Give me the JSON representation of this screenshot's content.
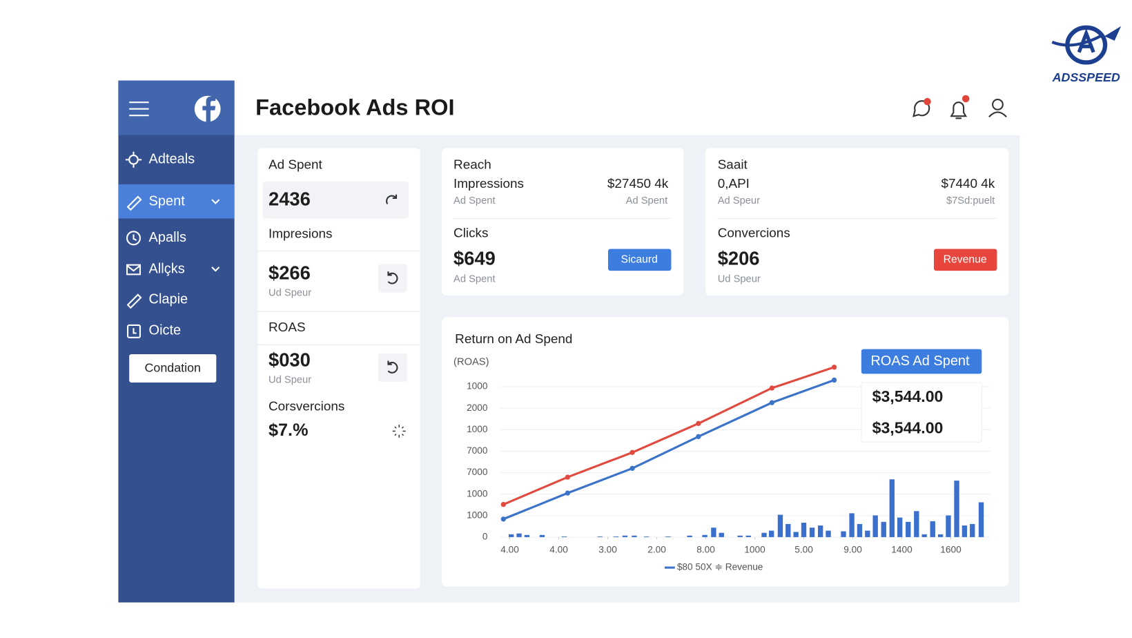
{
  "logo": {
    "text": "ADSSPEED"
  },
  "sidebar": {
    "items": [
      {
        "label": "Adteals"
      },
      {
        "label": "Spent"
      },
      {
        "label": "Apalls"
      },
      {
        "label": "Allçks"
      },
      {
        "label": "Clapie"
      },
      {
        "label": "Oicte"
      }
    ],
    "button": "Condation"
  },
  "header": {
    "title": "Facebook Ads ROI"
  },
  "left_card": {
    "ad_spent": {
      "label": "Ad Spent",
      "value": "2436"
    },
    "impressions": {
      "label": "Impresions",
      "value": "$266",
      "sub": "Ud Speur"
    },
    "roas": {
      "label": "ROAS",
      "value": "$030",
      "sub": "Ud Speur"
    },
    "conversions": {
      "label": "Corsvercions",
      "value": "$7.%"
    }
  },
  "middle_card": {
    "title": "Reach",
    "row_label": "Impressions",
    "row_value": "$27450 4k",
    "row_sub_left": "Ad Spent",
    "row_sub_right": "Ad Spent",
    "metric_label": "Clicks",
    "metric_value": "$649",
    "metric_sub": "Ad Spent",
    "button": "Sicaurd"
  },
  "right_card": {
    "title": "Saait",
    "row_label": "0,API",
    "row_value": "$7440 4k",
    "row_sub_left": "Ad Speur",
    "row_sub_right": "$7Sd:puelt",
    "metric_label": "Convercions",
    "metric_value": "$206",
    "metric_sub": "Ud Speur",
    "button": "Revenue"
  },
  "chart_data": {
    "type": "line",
    "title": "Return on Ad Spend",
    "y_label": "(ROAS)",
    "tooltip": {
      "title": "ROAS Ad Spent",
      "lines": [
        "$3,544.00",
        "$3,544.00"
      ]
    },
    "x": [
      -0.13,
      1.18,
      2.5,
      3.85,
      5.35,
      6.62
    ],
    "series": [
      {
        "color": "#e04a3f",
        "values": [
          1.52,
          2.79,
          3.94,
          5.29,
          6.94,
          7.91
        ]
      },
      {
        "name": "$80 50X ≑ Revenue",
        "color": "#3b73c8",
        "values": [
          0.84,
          2.05,
          3.2,
          4.68,
          6.26,
          7.31
        ]
      }
    ],
    "bars": {
      "color": "#3b6fcc",
      "x": [
        0.03,
        0.19,
        0.35,
        0.66,
        1.11,
        1.84,
        2.17,
        2.35,
        2.54,
        2.79,
        3.23,
        3.67,
        3.98,
        4.16,
        4.32,
        4.7,
        4.87,
        5.19,
        5.34,
        5.52,
        5.68,
        5.84,
        6.0,
        6.17,
        6.34,
        6.5,
        6.81,
        6.98,
        7.14,
        7.3,
        7.46,
        7.63,
        7.8,
        7.96,
        8.13,
        8.3,
        8.46,
        8.63,
        8.79,
        8.95,
        9.12,
        9.28,
        9.44,
        9.62
      ],
      "values": [
        0.13,
        0.17,
        0.1,
        0.1,
        0.03,
        0.03,
        0.03,
        0.07,
        0.07,
        0.03,
        0.03,
        0.07,
        0.1,
        0.44,
        0.2,
        0.07,
        0.07,
        0.2,
        0.3,
        1.04,
        0.61,
        0.24,
        0.67,
        0.44,
        0.54,
        0.3,
        0.27,
        1.11,
        0.61,
        0.3,
        1.01,
        0.71,
        2.69,
        0.91,
        0.71,
        1.21,
        0.13,
        0.74,
        0.13,
        1.01,
        2.63,
        0.54,
        0.61,
        1.62
      ]
    },
    "xlim": [
      -0.2,
      9.75
    ],
    "ylim": [
      0,
      7.4
    ],
    "xticks": [
      {
        "value": 0,
        "label": "4.00"
      },
      {
        "value": 1,
        "label": "4.00"
      },
      {
        "value": 2,
        "label": "3.00"
      },
      {
        "value": 3,
        "label": "2.00"
      },
      {
        "value": 4,
        "label": "8.00"
      },
      {
        "value": 5,
        "label": "1000"
      },
      {
        "value": 6,
        "label": "5.00"
      },
      {
        "value": 7,
        "label": "9.00"
      },
      {
        "value": 8,
        "label": "1400"
      },
      {
        "value": 9,
        "label": "1600"
      }
    ],
    "yticks": [
      {
        "value": 0,
        "label": "0"
      },
      {
        "value": 1,
        "label": "1000"
      },
      {
        "value": 2,
        "label": "1000"
      },
      {
        "value": 3,
        "label": "7000"
      },
      {
        "value": 4,
        "label": "7000"
      },
      {
        "value": 5,
        "label": "1000"
      },
      {
        "value": 6,
        "label": "2000"
      },
      {
        "value": 7,
        "label": "1000"
      }
    ],
    "grid": true
  }
}
